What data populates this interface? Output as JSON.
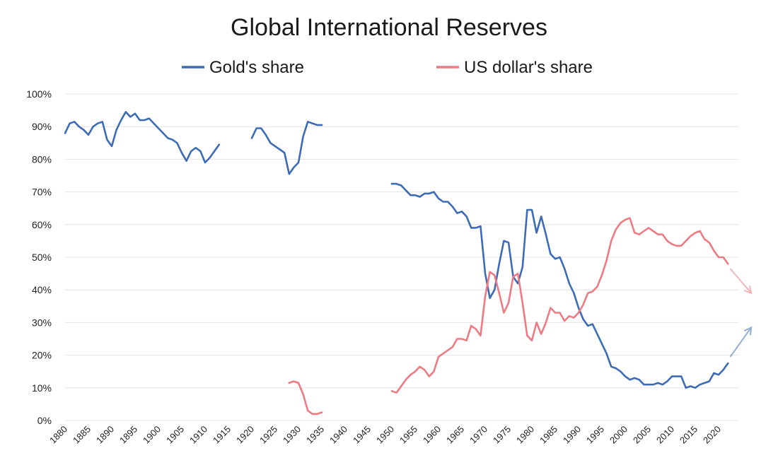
{
  "chart_data": {
    "type": "line",
    "title": "Global International Reserves",
    "xlabel": "",
    "ylabel": "",
    "xlim": [
      1880,
      2023
    ],
    "ylim": [
      0,
      100
    ],
    "legend_position": "top",
    "yticks": [
      "0%",
      "10%",
      "20%",
      "30%",
      "40%",
      "50%",
      "60%",
      "70%",
      "80%",
      "90%",
      "100%"
    ],
    "xticks": [
      "1880",
      "1885",
      "1890",
      "1895",
      "1900",
      "1905",
      "1910",
      "1915",
      "1920",
      "1925",
      "1930",
      "1935",
      "1940",
      "1945",
      "1950",
      "1955",
      "1960",
      "1965",
      "1970",
      "1975",
      "1980",
      "1985",
      "1990",
      "1995",
      "2000",
      "2005",
      "2010",
      "2015",
      "2020"
    ],
    "series": [
      {
        "name": "Gold's share",
        "color": "#3d6bb5",
        "segments": [
          [
            [
              1880,
              88
            ],
            [
              1881,
              91
            ],
            [
              1882,
              91.5
            ],
            [
              1883,
              90
            ],
            [
              1884,
              89
            ],
            [
              1885,
              87.5
            ],
            [
              1886,
              90
            ],
            [
              1887,
              91
            ],
            [
              1888,
              91.5
            ],
            [
              1889,
              86
            ],
            [
              1890,
              84
            ],
            [
              1891,
              89
            ],
            [
              1892,
              92
            ],
            [
              1893,
              94.5
            ],
            [
              1894,
              93
            ],
            [
              1895,
              94
            ],
            [
              1896,
              92
            ],
            [
              1897,
              92
            ],
            [
              1898,
              92.5
            ],
            [
              1899,
              91
            ],
            [
              1900,
              89.5
            ],
            [
              1901,
              88
            ],
            [
              1902,
              86.5
            ],
            [
              1903,
              86
            ],
            [
              1904,
              85
            ],
            [
              1905,
              82
            ],
            [
              1906,
              79.5
            ],
            [
              1907,
              82.5
            ],
            [
              1908,
              83.5
            ],
            [
              1909,
              82.5
            ],
            [
              1910,
              79
            ],
            [
              1911,
              80.5
            ],
            [
              1912,
              82.5
            ],
            [
              1913,
              84.5
            ]
          ],
          [
            [
              1920,
              86.5
            ],
            [
              1921,
              89.5
            ],
            [
              1922,
              89.5
            ],
            [
              1923,
              87.5
            ],
            [
              1924,
              85
            ],
            [
              1925,
              84
            ],
            [
              1926,
              83
            ],
            [
              1927,
              82
            ],
            [
              1928,
              75.5
            ],
            [
              1929,
              77.5
            ],
            [
              1930,
              79
            ],
            [
              1931,
              87
            ],
            [
              1932,
              91.5
            ],
            [
              1933,
              91
            ],
            [
              1934,
              90.5
            ],
            [
              1935,
              90.5
            ]
          ],
          [
            [
              1950,
              72.5
            ],
            [
              1951,
              72.5
            ],
            [
              1952,
              72
            ],
            [
              1953,
              70.5
            ],
            [
              1954,
              69
            ],
            [
              1955,
              69
            ],
            [
              1956,
              68.5
            ],
            [
              1957,
              69.5
            ],
            [
              1958,
              69.5
            ],
            [
              1959,
              70
            ],
            [
              1960,
              68
            ],
            [
              1961,
              67
            ],
            [
              1962,
              67
            ],
            [
              1963,
              65.5
            ],
            [
              1964,
              63.5
            ],
            [
              1965,
              64
            ],
            [
              1966,
              62.5
            ],
            [
              1967,
              59
            ],
            [
              1968,
              59
            ],
            [
              1969,
              59.5
            ],
            [
              1970,
              45
            ],
            [
              1971,
              37.5
            ],
            [
              1972,
              40
            ],
            [
              1973,
              48
            ],
            [
              1974,
              55
            ],
            [
              1975,
              54.5
            ],
            [
              1976,
              44
            ],
            [
              1977,
              42
            ],
            [
              1978,
              47
            ],
            [
              1979,
              64.5
            ],
            [
              1980,
              64.5
            ],
            [
              1981,
              57.5
            ],
            [
              1982,
              62.5
            ],
            [
              1983,
              57
            ],
            [
              1984,
              51
            ],
            [
              1985,
              49.5
            ],
            [
              1986,
              50
            ],
            [
              1987,
              46.5
            ],
            [
              1988,
              42
            ],
            [
              1989,
              39
            ],
            [
              1990,
              34.5
            ],
            [
              1991,
              31
            ],
            [
              1992,
              29
            ],
            [
              1993,
              29.5
            ],
            [
              1994,
              26.5
            ],
            [
              1995,
              23.5
            ],
            [
              1996,
              20.5
            ],
            [
              1997,
              16.5
            ],
            [
              1998,
              16
            ],
            [
              1999,
              15
            ],
            [
              2000,
              13.5
            ],
            [
              2001,
              12.5
            ],
            [
              2002,
              13
            ],
            [
              2003,
              12.5
            ],
            [
              2004,
              11
            ],
            [
              2005,
              11
            ],
            [
              2006,
              11
            ],
            [
              2007,
              11.5
            ],
            [
              2008,
              11
            ],
            [
              2009,
              12
            ],
            [
              2010,
              13.5
            ],
            [
              2011,
              13.5
            ],
            [
              2012,
              13.5
            ],
            [
              2013,
              10
            ],
            [
              2014,
              10.5
            ],
            [
              2015,
              10
            ],
            [
              2016,
              11
            ],
            [
              2017,
              11.5
            ],
            [
              2018,
              12
            ],
            [
              2019,
              14.5
            ],
            [
              2020,
              14
            ],
            [
              2021,
              15.5
            ],
            [
              2022,
              17.5
            ]
          ]
        ],
        "trend_arrow": [
          [
            2022.5,
            19.5
          ],
          [
            2027,
            28.5
          ]
        ]
      },
      {
        "name": "US dollar's share",
        "color": "#ec7b82",
        "segments": [
          [
            [
              1928,
              11.5
            ],
            [
              1929,
              12
            ],
            [
              1930,
              11.5
            ],
            [
              1931,
              8
            ],
            [
              1932,
              3
            ],
            [
              1933,
              2
            ],
            [
              1934,
              2
            ],
            [
              1935,
              2.5
            ]
          ],
          [
            [
              1950,
              9
            ],
            [
              1951,
              8.5
            ],
            [
              1952,
              10.5
            ],
            [
              1953,
              12.5
            ],
            [
              1954,
              14
            ],
            [
              1955,
              15
            ],
            [
              1956,
              16.5
            ],
            [
              1957,
              15.5
            ],
            [
              1958,
              13.5
            ],
            [
              1959,
              15
            ],
            [
              1960,
              19.5
            ],
            [
              1961,
              20.5
            ],
            [
              1962,
              21.5
            ],
            [
              1963,
              22.5
            ],
            [
              1964,
              25
            ],
            [
              1965,
              25
            ],
            [
              1966,
              24.5
            ],
            [
              1967,
              29
            ],
            [
              1968,
              28
            ],
            [
              1969,
              26
            ],
            [
              1970,
              38
            ],
            [
              1971,
              45.5
            ],
            [
              1972,
              44.5
            ],
            [
              1973,
              39
            ],
            [
              1974,
              33
            ],
            [
              1975,
              36
            ],
            [
              1976,
              44
            ],
            [
              1977,
              45
            ],
            [
              1978,
              36
            ],
            [
              1979,
              26
            ],
            [
              1980,
              24.5
            ],
            [
              1981,
              30
            ],
            [
              1982,
              26.5
            ],
            [
              1983,
              30
            ],
            [
              1984,
              34.5
            ],
            [
              1985,
              33
            ],
            [
              1986,
              33
            ],
            [
              1987,
              30.5
            ],
            [
              1988,
              32
            ],
            [
              1989,
              31.5
            ],
            [
              1990,
              33
            ],
            [
              1991,
              35.5
            ],
            [
              1992,
              39
            ],
            [
              1993,
              39.5
            ],
            [
              1994,
              41
            ],
            [
              1995,
              44.5
            ],
            [
              1996,
              49
            ],
            [
              1997,
              55
            ],
            [
              1998,
              58.5
            ],
            [
              1999,
              60.5
            ],
            [
              2000,
              61.5
            ],
            [
              2001,
              62
            ],
            [
              2002,
              57.5
            ],
            [
              2003,
              57
            ],
            [
              2004,
              58
            ],
            [
              2005,
              59
            ],
            [
              2006,
              58
            ],
            [
              2007,
              57
            ],
            [
              2008,
              57
            ],
            [
              2009,
              55
            ],
            [
              2010,
              54
            ],
            [
              2011,
              53.5
            ],
            [
              2012,
              53.5
            ],
            [
              2013,
              55
            ],
            [
              2014,
              56.5
            ],
            [
              2015,
              57.5
            ],
            [
              2016,
              58
            ],
            [
              2017,
              55.5
            ],
            [
              2018,
              54.5
            ],
            [
              2019,
              52
            ],
            [
              2020,
              50
            ],
            [
              2021,
              50
            ],
            [
              2022,
              48
            ]
          ]
        ],
        "trend_arrow": [
          [
            2022.5,
            46.5
          ],
          [
            2027,
            39
          ]
        ]
      }
    ]
  }
}
